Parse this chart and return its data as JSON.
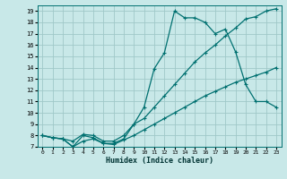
{
  "xlabel": "Humidex (Indice chaleur)",
  "xlim": [
    -0.5,
    23.5
  ],
  "ylim": [
    7,
    19.5
  ],
  "yticks": [
    7,
    8,
    9,
    10,
    11,
    12,
    13,
    14,
    15,
    16,
    17,
    18,
    19
  ],
  "xticks": [
    0,
    1,
    2,
    3,
    4,
    5,
    6,
    7,
    8,
    9,
    10,
    11,
    12,
    13,
    14,
    15,
    16,
    17,
    18,
    19,
    20,
    21,
    22,
    23
  ],
  "bg_color": "#c8e8e8",
  "grid_color": "#a0c8c8",
  "line_color": "#007070",
  "line1_x": [
    0,
    1,
    2,
    3,
    4,
    5,
    6,
    7,
    8,
    9,
    10,
    11,
    12,
    13,
    14,
    15,
    16,
    17,
    18,
    19,
    20,
    21,
    22,
    23
  ],
  "line1_y": [
    8.0,
    7.8,
    7.7,
    7.0,
    8.0,
    7.8,
    7.3,
    7.3,
    7.7,
    9.0,
    10.5,
    13.9,
    15.3,
    19.0,
    18.4,
    18.4,
    18.0,
    17.0,
    17.4,
    15.4,
    12.5,
    11.0,
    11.0,
    10.5
  ],
  "line2_x": [
    0,
    1,
    2,
    3,
    4,
    5,
    6,
    7,
    8,
    9,
    10,
    11,
    12,
    13,
    14,
    15,
    16,
    17,
    18,
    19,
    20,
    21,
    22,
    23
  ],
  "line2_y": [
    8.0,
    7.8,
    7.7,
    7.5,
    8.1,
    8.0,
    7.5,
    7.5,
    8.0,
    9.0,
    9.5,
    10.5,
    11.5,
    12.5,
    13.5,
    14.5,
    15.3,
    16.0,
    16.8,
    17.5,
    18.3,
    18.5,
    19.0,
    19.2
  ],
  "line3_x": [
    0,
    1,
    2,
    3,
    4,
    5,
    6,
    7,
    8,
    9,
    10,
    11,
    12,
    13,
    14,
    15,
    16,
    17,
    18,
    19,
    20,
    21,
    22,
    23
  ],
  "line3_y": [
    8.0,
    7.8,
    7.7,
    7.0,
    7.5,
    7.7,
    7.3,
    7.2,
    7.6,
    8.0,
    8.5,
    9.0,
    9.5,
    10.0,
    10.5,
    11.0,
    11.5,
    11.9,
    12.3,
    12.7,
    13.0,
    13.3,
    13.6,
    14.0
  ]
}
